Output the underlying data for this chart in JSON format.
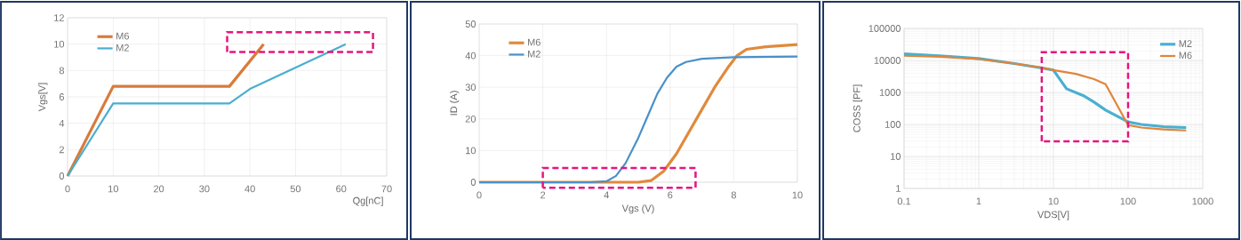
{
  "chart_data": [
    {
      "type": "line",
      "xlabel": "Qg[nC]",
      "ylabel": "Vgs[V]",
      "xlim": [
        0,
        70
      ],
      "xticks": [
        0,
        10,
        20,
        30,
        40,
        50,
        60,
        70
      ],
      "ylim": [
        0,
        12
      ],
      "yticks": [
        0,
        2,
        4,
        6,
        8,
        10,
        12
      ],
      "grid": true,
      "legend": "top left",
      "marker": "none",
      "line_style": "solid",
      "series": [
        {
          "name": "M6",
          "color": "#d97b3a",
          "x": [
            0,
            10,
            35.5,
            43
          ],
          "values": [
            0,
            6.8,
            6.8,
            10
          ]
        },
        {
          "name": "M2",
          "color": "#4aaed0",
          "x": [
            0,
            10,
            35.5,
            40,
            61
          ],
          "values": [
            0,
            5.5,
            5.5,
            6.6,
            10
          ]
        }
      ]
    },
    {
      "type": "line",
      "xlabel": "Vgs (V)",
      "ylabel": "ID (A)",
      "xlim": [
        0,
        10
      ],
      "xticks": [
        0,
        2,
        4,
        6,
        8,
        10
      ],
      "ylim": [
        0,
        50
      ],
      "yticks": [
        0,
        10,
        20,
        30,
        40,
        50
      ],
      "grid": true,
      "legend": "top left",
      "marker": "none",
      "line_style": "solid",
      "series": [
        {
          "name": "M6",
          "color": "#e08a3c",
          "x": [
            0,
            5,
            5.4,
            5.8,
            6.2,
            6.6,
            7,
            7.4,
            7.8,
            8.1,
            8.4,
            9,
            10
          ],
          "values": [
            0,
            0,
            0.5,
            3.5,
            9,
            16,
            23,
            30,
            36,
            40,
            42,
            42.8,
            43.5
          ]
        },
        {
          "name": "M2",
          "color": "#4a90c8",
          "x": [
            0,
            3.5,
            4,
            4.3,
            4.6,
            5,
            5.3,
            5.6,
            5.9,
            6.2,
            6.5,
            7,
            8,
            10
          ],
          "values": [
            0,
            0,
            0.3,
            2,
            6,
            14,
            21,
            28,
            33,
            36.5,
            38,
            39,
            39.5,
            39.7
          ]
        }
      ]
    },
    {
      "type": "line",
      "xlabel": "VDS[V]",
      "ylabel": "COSS [PF]",
      "log": "xy",
      "xlim": [
        0.1,
        1000
      ],
      "xticks": [
        0.1,
        1,
        10,
        100,
        1000
      ],
      "ylim": [
        1,
        100000
      ],
      "yticks": [
        1,
        10,
        100,
        1000,
        10000,
        100000
      ],
      "grid": true,
      "legend": "top right",
      "marker": "none",
      "line_style": "solid",
      "series": [
        {
          "name": "M2",
          "color": "#4ab0d0",
          "x": [
            0.1,
            0.3,
            1,
            3,
            7,
            10,
            15,
            25,
            35,
            50,
            100,
            150,
            300,
            600
          ],
          "values": [
            16000,
            14000,
            11500,
            8000,
            5800,
            5000,
            1300,
            800,
            500,
            280,
            120,
            100,
            85,
            80
          ]
        },
        {
          "name": "M6",
          "color": "#e0853a",
          "x": [
            0.1,
            0.3,
            1,
            3,
            7,
            10,
            20,
            35,
            50,
            100,
            150,
            300,
            600
          ],
          "values": [
            14000,
            13000,
            11000,
            8000,
            6000,
            5000,
            3800,
            2600,
            1800,
            95,
            80,
            70,
            65
          ]
        }
      ]
    }
  ]
}
